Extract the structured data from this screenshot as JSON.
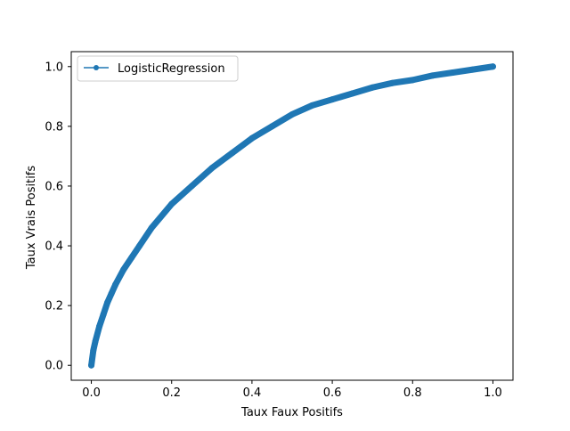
{
  "chart_data": {
    "type": "line",
    "title": "",
    "xlabel": "Taux Faux Positifs",
    "ylabel": "Taux Vrais Positifs",
    "xlim": [
      -0.05,
      1.05
    ],
    "ylim": [
      -0.05,
      1.05
    ],
    "xticks": [
      0.0,
      0.2,
      0.4,
      0.6,
      0.8,
      1.0
    ],
    "yticks": [
      0.0,
      0.2,
      0.4,
      0.6,
      0.8,
      1.0
    ],
    "xtick_labels": [
      "0.0",
      "0.2",
      "0.4",
      "0.6",
      "0.8",
      "1.0"
    ],
    "ytick_labels": [
      "0.0",
      "0.2",
      "0.4",
      "0.6",
      "0.8",
      "1.0"
    ],
    "grid": false,
    "legend": {
      "placement": "top-left",
      "entries": [
        "LogisticRegression"
      ]
    },
    "series": [
      {
        "name": "LogisticRegression",
        "color": "#1f77b4",
        "marker": "circle",
        "x": [
          0.0,
          0.005,
          0.01,
          0.02,
          0.03,
          0.04,
          0.05,
          0.06,
          0.08,
          0.1,
          0.12,
          0.15,
          0.2,
          0.25,
          0.3,
          0.35,
          0.4,
          0.45,
          0.5,
          0.55,
          0.6,
          0.65,
          0.7,
          0.75,
          0.8,
          0.85,
          0.9,
          0.95,
          1.0
        ],
        "y": [
          0.0,
          0.05,
          0.08,
          0.13,
          0.17,
          0.21,
          0.24,
          0.27,
          0.32,
          0.36,
          0.4,
          0.46,
          0.54,
          0.6,
          0.66,
          0.71,
          0.76,
          0.8,
          0.84,
          0.87,
          0.89,
          0.91,
          0.93,
          0.945,
          0.955,
          0.97,
          0.98,
          0.99,
          1.0
        ]
      }
    ]
  }
}
